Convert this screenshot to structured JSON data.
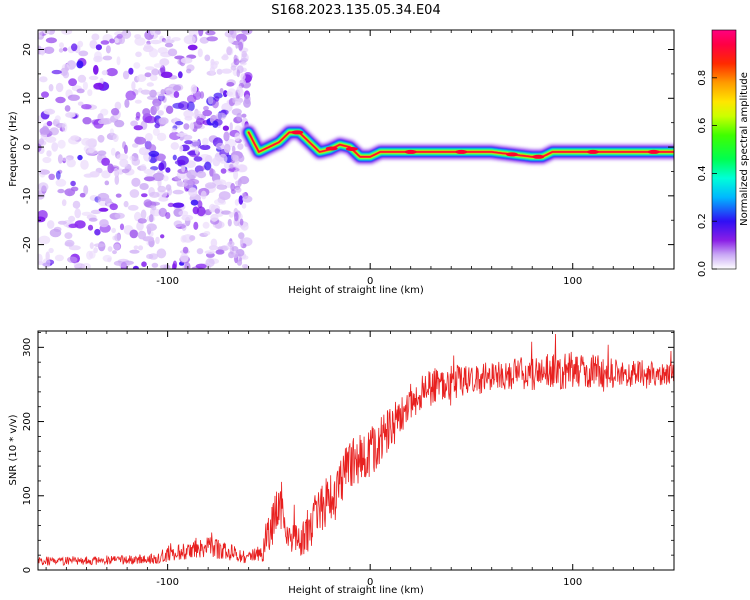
{
  "figure": {
    "title": "S168.2023.135.05.34.E04"
  },
  "chart_data": [
    {
      "type": "heatmap",
      "title": "S168.2023.135.05.34.E04",
      "xlabel": "Height of straight line (km)",
      "ylabel": "Frequency (Hz)",
      "xlim": [
        -164,
        150
      ],
      "ylim": [
        -25,
        24
      ],
      "xticks": [
        -100,
        0,
        100
      ],
      "yticks": [
        -20,
        -10,
        0,
        10,
        20
      ],
      "xtick_labels": [
        "-100",
        "0",
        "100"
      ],
      "ytick_labels": [
        "-20",
        "-10",
        "0",
        "10",
        "20"
      ],
      "colorbar": {
        "label": "Normalized spectral amplitude",
        "range": [
          0,
          1
        ],
        "ticks": [
          0.0,
          0.2,
          0.4,
          0.6,
          0.8
        ],
        "tick_labels": [
          "0.0",
          "0.2",
          "0.4",
          "0.6",
          "0.8"
        ],
        "colormap": "gist_rainbow"
      },
      "ridge": {
        "description": "dominant frequency trace vs height",
        "x": [
          -60,
          -55,
          -50,
          -45,
          -40,
          -35,
          -30,
          -25,
          -20,
          -15,
          -10,
          -5,
          0,
          5,
          10,
          20,
          40,
          60,
          70,
          80,
          85,
          90,
          100,
          120,
          150
        ],
        "freq": [
          3,
          -1,
          0,
          1,
          3,
          3,
          1,
          -1,
          -0.5,
          0.5,
          0,
          -2,
          -2,
          -1,
          -1,
          -1,
          -1,
          -1,
          -1.5,
          -2,
          -2,
          -1,
          -1,
          -1,
          -1
        ]
      },
      "noise_region": {
        "x_range": [
          -164,
          -60
        ],
        "description": "scattered broadband noise"
      }
    },
    {
      "type": "line",
      "title": "",
      "xlabel": "Height of straight line (km)",
      "ylabel": "SNR (10 * v/v)",
      "xlim": [
        -164,
        150
      ],
      "ylim": [
        0,
        322
      ],
      "xticks": [
        -100,
        0,
        100
      ],
      "yticks": [
        0,
        100,
        200,
        300
      ],
      "xtick_labels": [
        "-100",
        "0",
        "100"
      ],
      "ytick_labels": [
        "0",
        "100",
        "200",
        "300"
      ],
      "series": [
        {
          "name": "SNR",
          "color": "#e8201f",
          "trend_x": [
            -164,
            -110,
            -100,
            -90,
            -80,
            -70,
            -60,
            -55,
            -50,
            -45,
            -40,
            -35,
            -30,
            -25,
            -20,
            -10,
            0,
            10,
            20,
            30,
            40,
            60,
            80,
            100,
            120,
            150
          ],
          "trend_y": [
            12,
            14,
            20,
            25,
            30,
            25,
            15,
            20,
            50,
            90,
            45,
            40,
            55,
            80,
            100,
            140,
            160,
            190,
            230,
            245,
            255,
            260,
            265,
            270,
            265,
            265
          ],
          "noise_amplitude": [
            6,
            6,
            10,
            12,
            15,
            12,
            8,
            15,
            30,
            35,
            20,
            25,
            30,
            35,
            35,
            35,
            35,
            30,
            25,
            25,
            25,
            20,
            25,
            25,
            20,
            15
          ]
        }
      ]
    }
  ]
}
